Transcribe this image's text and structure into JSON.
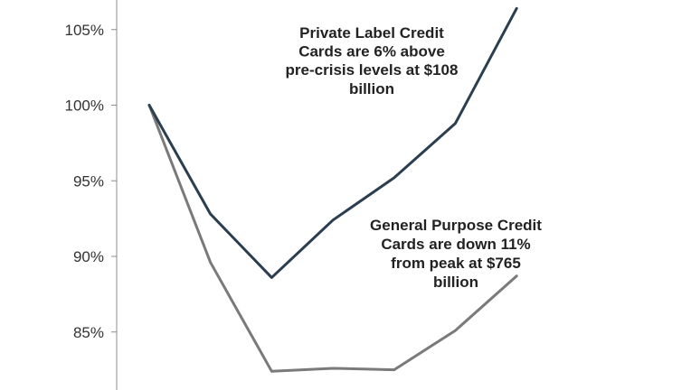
{
  "chart_data": {
    "type": "line",
    "title": "",
    "xlabel": "",
    "ylabel": "",
    "x": [
      0,
      1,
      2,
      3,
      4,
      5,
      6
    ],
    "ylim": [
      80.8,
      107
    ],
    "yticks": [
      85,
      90,
      95,
      100,
      105
    ],
    "ytick_labels": [
      "85%",
      "90%",
      "95%",
      "100%",
      "105%"
    ],
    "grid": false,
    "series": [
      {
        "key": "private_label",
        "color": "#2b3e50",
        "values": [
          100.0,
          92.8,
          88.6,
          92.4,
          95.2,
          98.8,
          106.4
        ]
      },
      {
        "key": "general_purpose",
        "color": "#7a7a7a",
        "values": [
          100.0,
          89.6,
          82.4,
          82.6,
          82.5,
          85.1,
          88.7
        ]
      }
    ],
    "annotations": [
      {
        "series": "private_label",
        "lines": [
          "Private Label Credit",
          "Cards are 6% above",
          "pre-crisis levels at $108",
          "billion"
        ]
      },
      {
        "series": "general_purpose",
        "lines": [
          "General Purpose Credit",
          "Cards are down 11%",
          "from peak at $765",
          "billion"
        ]
      }
    ]
  }
}
